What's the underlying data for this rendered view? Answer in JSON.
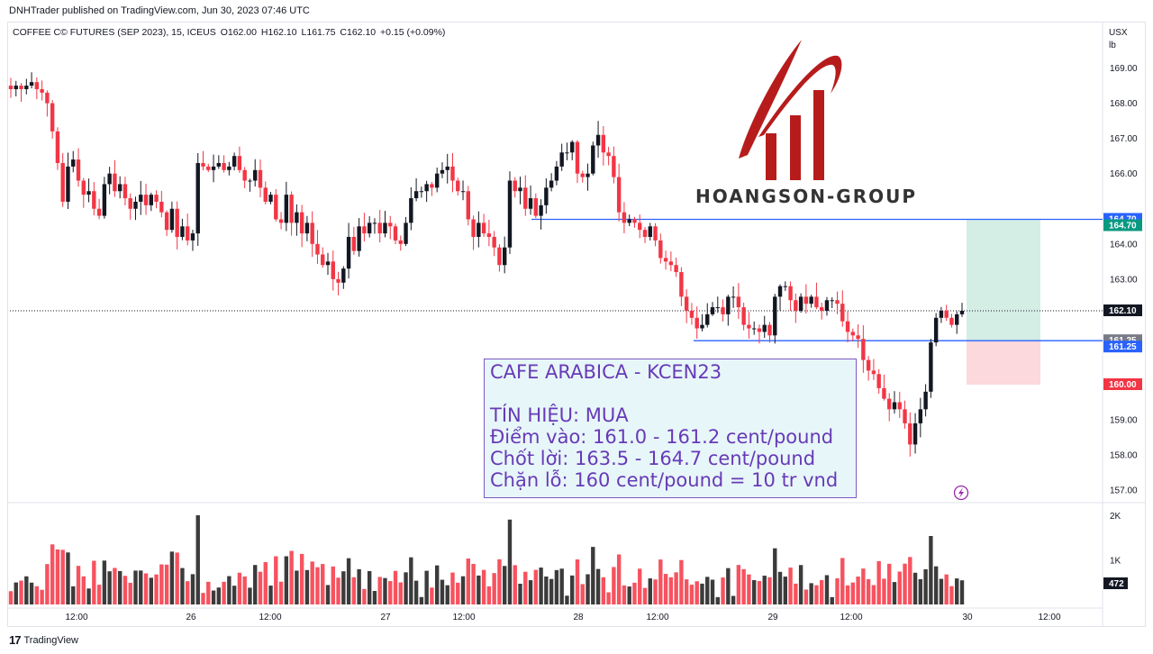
{
  "header": {
    "publisher": "DNHTrader published on TradingView.com, Jun 30, 2023 07:46 UTC"
  },
  "legend": {
    "symbol": "COFFEE C© FUTURES (SEP 2023), 15, ICEUS",
    "open": "O162.00",
    "high": "H162.10",
    "low": "L161.75",
    "close": "C162.10",
    "change": "+0.15 (+0.09%)"
  },
  "axis": {
    "currency": "USX",
    "unit": "lb"
  },
  "logo": {
    "text": "HOANGSON-GROUP"
  },
  "annotation": {
    "line1": "CAFE ARABICA - KCEN23",
    "line2": "TÍN HIỆU: MUA",
    "line3": "Điểm vào: 161.0 - 161.2 cent/pound",
    "line4": "Chốt lời: 163.5 - 164.7 cent/pound",
    "line5": "Chặn lỗ: 160 cent/pound = 10 tr vnd"
  },
  "footer": {
    "brand": "TradingView",
    "logo_mark": "17"
  },
  "colors": {
    "up": "#131722",
    "down": "#f23645",
    "vol_up": "#3b3b3b",
    "vol_down": "#f7525f",
    "line": "#2962ff",
    "tp_fill": "#d4ede5",
    "sl_fill": "#fbd9dc",
    "logo_red": "#b71c1c"
  },
  "chart_data": {
    "type": "candlestick",
    "ylim": [
      156.7,
      169.5
    ],
    "y_ticks": [
      "169.00",
      "168.00",
      "167.00",
      "166.00",
      "164.00",
      "163.00",
      "159.00",
      "158.00",
      "157.00"
    ],
    "x_ticks": [
      "12:00",
      "26",
      "12:00",
      "27",
      "12:00",
      "28",
      "12:00",
      "29",
      "12:00",
      "30",
      "12:00"
    ],
    "volume_ticks": [
      "2K",
      "1K"
    ],
    "volume_max": 2000,
    "price_labels": [
      {
        "text": "164.70",
        "value": 164.7,
        "kind": "line"
      },
      {
        "text": "164.70",
        "value": 164.7,
        "kind": "green"
      },
      {
        "text": "162.10",
        "value": 162.1,
        "kind": "last"
      },
      {
        "text": "161.25",
        "value": 161.25,
        "kind": "grey"
      },
      {
        "text": "161.25",
        "value": 161.25,
        "kind": "line"
      },
      {
        "text": "160.00",
        "value": 160.0,
        "kind": "red"
      }
    ],
    "volume_label": "472",
    "horizontal_lines": [
      {
        "value": 164.7
      },
      {
        "value": 161.25
      }
    ],
    "position": {
      "entry": 161.25,
      "target": 164.7,
      "stop": 160.0
    },
    "last_price": 162.1,
    "close": [
      168.4,
      168.5,
      168.4,
      168.5,
      168.6,
      168.4,
      168.3,
      168.0,
      167.2,
      166.3,
      165.2,
      166.2,
      166.4,
      165.8,
      165.4,
      165.5,
      165.0,
      164.8,
      165.7,
      166.0,
      165.5,
      165.7,
      165.3,
      165.0,
      165.2,
      165.4,
      165.1,
      165.4,
      165.2,
      164.9,
      164.4,
      165.0,
      164.2,
      164.5,
      164.1,
      164.3,
      166.3,
      166.2,
      166.1,
      166.2,
      166.3,
      166.1,
      166.2,
      166.5,
      166.1,
      165.8,
      165.8,
      166.1,
      165.6,
      165.2,
      165.4,
      164.7,
      164.6,
      165.4,
      164.6,
      164.9,
      164.3,
      164.6,
      164.0,
      163.7,
      163.4,
      163.5,
      163.0,
      162.9,
      163.3,
      164.2,
      163.8,
      164.5,
      164.3,
      164.6,
      164.6,
      164.3,
      164.6,
      164.5,
      164.1,
      164.0,
      164.6,
      165.3,
      165.5,
      165.5,
      165.7,
      165.6,
      166.0,
      166.1,
      166.2,
      165.8,
      165.5,
      165.5,
      164.7,
      164.2,
      164.6,
      164.3,
      164.2,
      163.9,
      163.4,
      163.9,
      165.8,
      165.5,
      165.6,
      165.0,
      165.3,
      164.8,
      165.1,
      165.6,
      165.8,
      166.2,
      166.6,
      166.6,
      166.9,
      166.0,
      165.9,
      166.0,
      166.8,
      167.1,
      166.6,
      166.5,
      165.9,
      164.9,
      164.6,
      164.7,
      164.6,
      164.4,
      164.2,
      164.5,
      164.1,
      163.6,
      163.5,
      163.4,
      163.2,
      162.5,
      162.1,
      161.9,
      161.6,
      161.7,
      162.0,
      162.2,
      162.2,
      162.0,
      162.5,
      162.5,
      162.2,
      161.7,
      161.6,
      161.6,
      161.5,
      161.7,
      161.4,
      162.5,
      162.8,
      162.8,
      162.4,
      162.1,
      162.5,
      162.3,
      162.5,
      162.2,
      162.1,
      162.4,
      162.4,
      162.3,
      161.8,
      161.5,
      161.4,
      161.3,
      160.7,
      160.4,
      160.3,
      159.9,
      159.6,
      159.3,
      159.5,
      159.3,
      158.9,
      158.3,
      158.9,
      159.3,
      159.8,
      161.2,
      161.9,
      162.1,
      161.9,
      161.7,
      162.0,
      162.1
    ]
  }
}
